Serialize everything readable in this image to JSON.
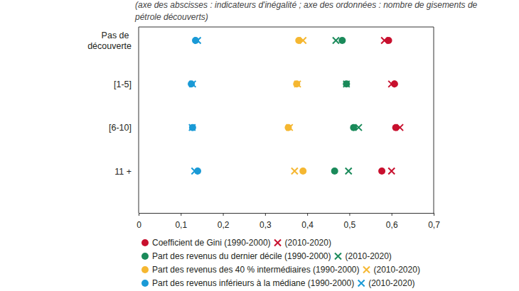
{
  "chart_data": {
    "type": "dot",
    "title": "(axe des abscisses : indicateurs d'inégalité ; axe des ordonnées : nombre de gisements de pétrole découverts)",
    "categories": [
      "Pas de découverte",
      "[1-5]",
      "[6-10]",
      "11 +"
    ],
    "xlim": [
      0,
      0.7
    ],
    "xticks": [
      0,
      {
        "value": 0.1,
        "label": "0,1"
      },
      {
        "value": 0.2,
        "label": "0,2"
      },
      {
        "value": 0.3,
        "label": "0,3"
      },
      {
        "value": 0.4,
        "label": "0,4"
      },
      {
        "value": 0.5,
        "label": "0,5"
      },
      {
        "value": 0.6,
        "label": "0,6"
      },
      {
        "value": 0.7,
        "label": "0,7"
      }
    ],
    "grid": false,
    "legend": "bottom",
    "series": [
      {
        "name": "Coefficient de Gini (1990-2000)",
        "color": "#c8102e",
        "marker": "circle",
        "values": [
          0.593,
          0.607,
          0.61,
          0.577
        ]
      },
      {
        "name": "(2010-2020)",
        "color": "#c8102e",
        "marker": "x",
        "values": [
          0.583,
          0.6,
          0.62,
          0.6
        ]
      },
      {
        "name": "Part des revenus du dernier décile (1990-2000)",
        "color": "#1a8a5a",
        "marker": "circle",
        "values": [
          0.483,
          0.493,
          0.51,
          0.465
        ]
      },
      {
        "name": "(2010-2020)",
        "color": "#1a8a5a",
        "marker": "x",
        "values": [
          0.468,
          0.493,
          0.522,
          0.498
        ]
      },
      {
        "name": "Part des revenus des 40 % intermédiaires (1990-2000)",
        "color": "#f5b731",
        "marker": "circle",
        "values": [
          0.38,
          0.375,
          0.355,
          0.39
        ]
      },
      {
        "name": "(2010-2020)",
        "color": "#f5b731",
        "marker": "x",
        "values": [
          0.39,
          0.377,
          0.358,
          0.37
        ]
      },
      {
        "name": "Part des revenus inférieurs à la médiane (1990-2000)",
        "color": "#1a9ad6",
        "marker": "circle",
        "values": [
          0.135,
          0.125,
          0.128,
          0.14
        ]
      },
      {
        "name": "(2010-2020)",
        "color": "#1a9ad6",
        "marker": "x",
        "values": [
          0.14,
          0.128,
          0.127,
          0.133
        ]
      }
    ]
  }
}
